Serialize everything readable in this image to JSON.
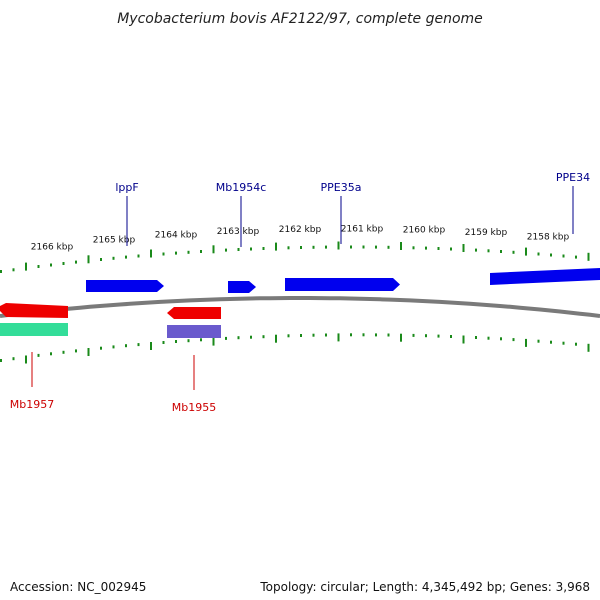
{
  "title": "Mycobacterium bovis AF2122/97, complete genome",
  "colors": {
    "backbone": "#7a7a7a",
    "tick": "#1a8a1a",
    "forward_gene": "#0000ee",
    "reverse_gene": "#ee0000",
    "forward_label": "#00008b",
    "reverse_label": "#cc0000",
    "rna_band": "#33dd99",
    "purple_band": "#6a5acd"
  },
  "ticks": [
    "2166 kbp",
    "2165 kbp",
    "2164 kbp",
    "2163 kbp",
    "2162 kbp",
    "2161 kbp",
    "2160 kbp",
    "2159 kbp",
    "2158 kbp"
  ],
  "forward_labels": [
    "lppF",
    "Mb1954c",
    "PPE35a",
    "PPE34"
  ],
  "reverse_labels": [
    "Mb1957",
    "Mb1955"
  ],
  "footer": {
    "accession": "Accession: NC_002945",
    "summary": "Topology: circular; Length: 4,345,492 bp; Genes: 3,968"
  }
}
